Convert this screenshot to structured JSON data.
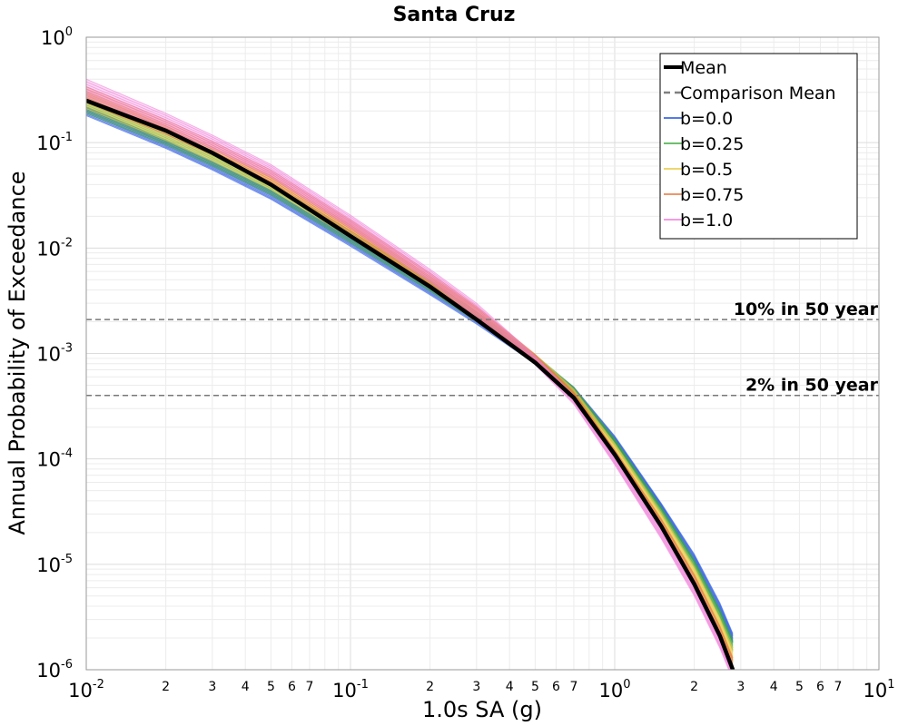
{
  "chart_data": {
    "type": "line",
    "title": "Santa Cruz",
    "xlabel": "1.0s SA (g)",
    "ylabel": "Annual Probability of Exceedance",
    "xscale": "log",
    "yscale": "log",
    "xlim": [
      0.01,
      10
    ],
    "ylim": [
      1e-06,
      1
    ],
    "grid": true,
    "legend_position": "top-right",
    "x_major_ticks": [
      {
        "base": "10",
        "exp": "-2",
        "value": 0.01
      },
      {
        "base": "10",
        "exp": "-1",
        "value": 0.1
      },
      {
        "base": "10",
        "exp": "0",
        "value": 1
      },
      {
        "base": "10",
        "exp": "1",
        "value": 10
      }
    ],
    "x_minor_tick_labels": [
      "2",
      "3",
      "4",
      "5",
      "6",
      "7"
    ],
    "y_major_ticks": [
      {
        "base": "10",
        "exp": "0",
        "value": 1
      },
      {
        "base": "10",
        "exp": "-1",
        "value": 0.1
      },
      {
        "base": "10",
        "exp": "-2",
        "value": 0.01
      },
      {
        "base": "10",
        "exp": "-3",
        "value": 0.001
      },
      {
        "base": "10",
        "exp": "-4",
        "value": 0.0001
      },
      {
        "base": "10",
        "exp": "-5",
        "value": 1e-05
      },
      {
        "base": "10",
        "exp": "-6",
        "value": 1e-06
      }
    ],
    "reference_lines": [
      {
        "label": "10% in 50 year",
        "y": 0.0021
      },
      {
        "label": "2% in 50 year",
        "y": 0.0004
      }
    ],
    "mean": {
      "name": "Mean",
      "color": "#000000",
      "x": [
        0.01,
        0.02,
        0.03,
        0.05,
        0.1,
        0.2,
        0.3,
        0.5,
        0.7,
        1.0,
        1.5,
        2.0,
        2.5,
        2.8
      ],
      "y": [
        0.25,
        0.13,
        0.08,
        0.04,
        0.013,
        0.0043,
        0.0021,
        0.00082,
        0.00038,
        0.00011,
        2.3e-05,
        6.5e-06,
        2.1e-06,
        1e-06
      ]
    },
    "comparison_mean": {
      "name": "Comparison Mean",
      "color": "#808080",
      "dashed": true,
      "x": [
        0.01,
        0.02,
        0.03,
        0.05,
        0.1,
        0.2,
        0.3,
        0.5,
        0.7,
        1.0,
        1.5,
        2.0,
        2.5,
        2.8
      ],
      "y": [
        0.25,
        0.13,
        0.08,
        0.04,
        0.013,
        0.0043,
        0.0021,
        0.00082,
        0.00038,
        0.00011,
        2.3e-05,
        6.5e-06,
        2.1e-06,
        1e-06
      ]
    },
    "series": [
      {
        "name": "b=0.0",
        "color": "#1f4fe0",
        "lower": [
          0.18,
          0.088,
          0.055,
          0.029,
          0.0104,
          0.0036,
          0.0019,
          0.0008,
          0.00042,
          0.000145,
          3.35e-05,
          1.05e-05,
          3.5e-06,
          1.8e-06
        ],
        "upper": [
          0.22,
          0.105,
          0.066,
          0.035,
          0.0125,
          0.0043,
          0.0023,
          0.00093,
          0.00048,
          0.000165,
          3.8e-05,
          1.25e-05,
          4.3e-06,
          2.2e-06
        ]
      },
      {
        "name": "b=0.25",
        "color": "#3da83d",
        "lower": [
          0.19,
          0.095,
          0.06,
          0.032,
          0.0112,
          0.0039,
          0.002,
          0.00082,
          0.00041,
          0.000135,
          3e-05,
          9.3e-06,
          3.1e-06,
          1.5e-06
        ],
        "upper": [
          0.26,
          0.125,
          0.078,
          0.041,
          0.0145,
          0.0049,
          0.0025,
          0.00097,
          0.00048,
          0.000155,
          3.5e-05,
          1.1e-05,
          3.7e-06,
          1.9e-06
        ]
      },
      {
        "name": "b=0.5",
        "color": "#e8c840",
        "lower": [
          0.21,
          0.105,
          0.067,
          0.036,
          0.0125,
          0.0042,
          0.0021,
          0.00082,
          0.00039,
          0.00012,
          2.6e-05,
          7.8e-06,
          2.5e-06,
          1.2e-06
        ],
        "upper": [
          0.3,
          0.145,
          0.09,
          0.048,
          0.0165,
          0.0054,
          0.0027,
          0.00098,
          0.00046,
          0.00014,
          3.1e-05,
          9.5e-06,
          3.1e-06,
          1.6e-06
        ]
      },
      {
        "name": "b=0.75",
        "color": "#e8733a",
        "lower": [
          0.24,
          0.12,
          0.077,
          0.041,
          0.014,
          0.0045,
          0.0022,
          0.00082,
          0.00037,
          0.000105,
          2.2e-05,
          6.4e-06,
          2e-06,
          1e-06
        ],
        "upper": [
          0.34,
          0.165,
          0.103,
          0.055,
          0.0185,
          0.0058,
          0.0028,
          0.00098,
          0.00043,
          0.000122,
          2.7e-05,
          8e-06,
          2.6e-06,
          1.3e-06
        ]
      },
      {
        "name": "b=1.0",
        "color": "#f07ad8",
        "lower": [
          0.27,
          0.135,
          0.087,
          0.047,
          0.0155,
          0.0048,
          0.0022,
          0.00078,
          0.00033,
          8.8e-05,
          1.75e-05,
          5e-06,
          1.6e-06,
          8e-07
        ],
        "upper": [
          0.4,
          0.19,
          0.118,
          0.062,
          0.0205,
          0.0063,
          0.003,
          0.00095,
          0.0004,
          0.000105,
          2.15e-05,
          6.3e-06,
          2e-06,
          1e-06
        ]
      }
    ],
    "band_x": [
      0.01,
      0.02,
      0.03,
      0.05,
      0.1,
      0.2,
      0.3,
      0.5,
      0.7,
      1.0,
      1.5,
      2.0,
      2.5,
      2.8
    ]
  }
}
